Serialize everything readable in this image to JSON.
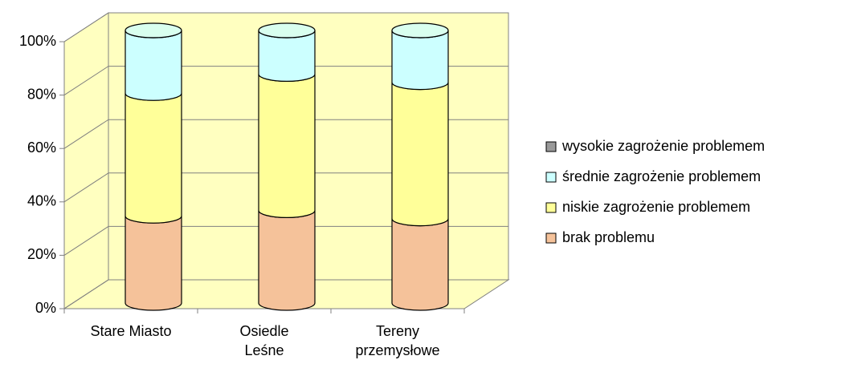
{
  "chart_data": {
    "type": "bar3d_stacked_cylinder",
    "categories": [
      "Stare Miasto",
      "Osiedle\nLeśne",
      "Tereny\nprzemysłowe"
    ],
    "series": [
      {
        "name": "brak problemu",
        "color": "#f5c29a",
        "values": [
          32,
          34,
          31
        ]
      },
      {
        "name": "niskie zagrożenie problemem",
        "color": "#ffff99",
        "values": [
          45,
          50,
          50
        ]
      },
      {
        "name": "średnie zagrożenie problemem",
        "color": "#ccffff",
        "values": [
          23,
          16,
          19
        ]
      },
      {
        "name": "wysokie zagrożenie problemem",
        "color": "#999999",
        "values": [
          0,
          0,
          0
        ]
      }
    ],
    "ylim": [
      0,
      100
    ],
    "yticks": [
      {
        "value": 0,
        "label": "0%"
      },
      {
        "value": 20,
        "label": "20%"
      },
      {
        "value": 40,
        "label": "40%"
      },
      {
        "value": 60,
        "label": "60%"
      },
      {
        "value": 80,
        "label": "80%"
      },
      {
        "value": 100,
        "label": "100%"
      }
    ],
    "grid": true
  }
}
